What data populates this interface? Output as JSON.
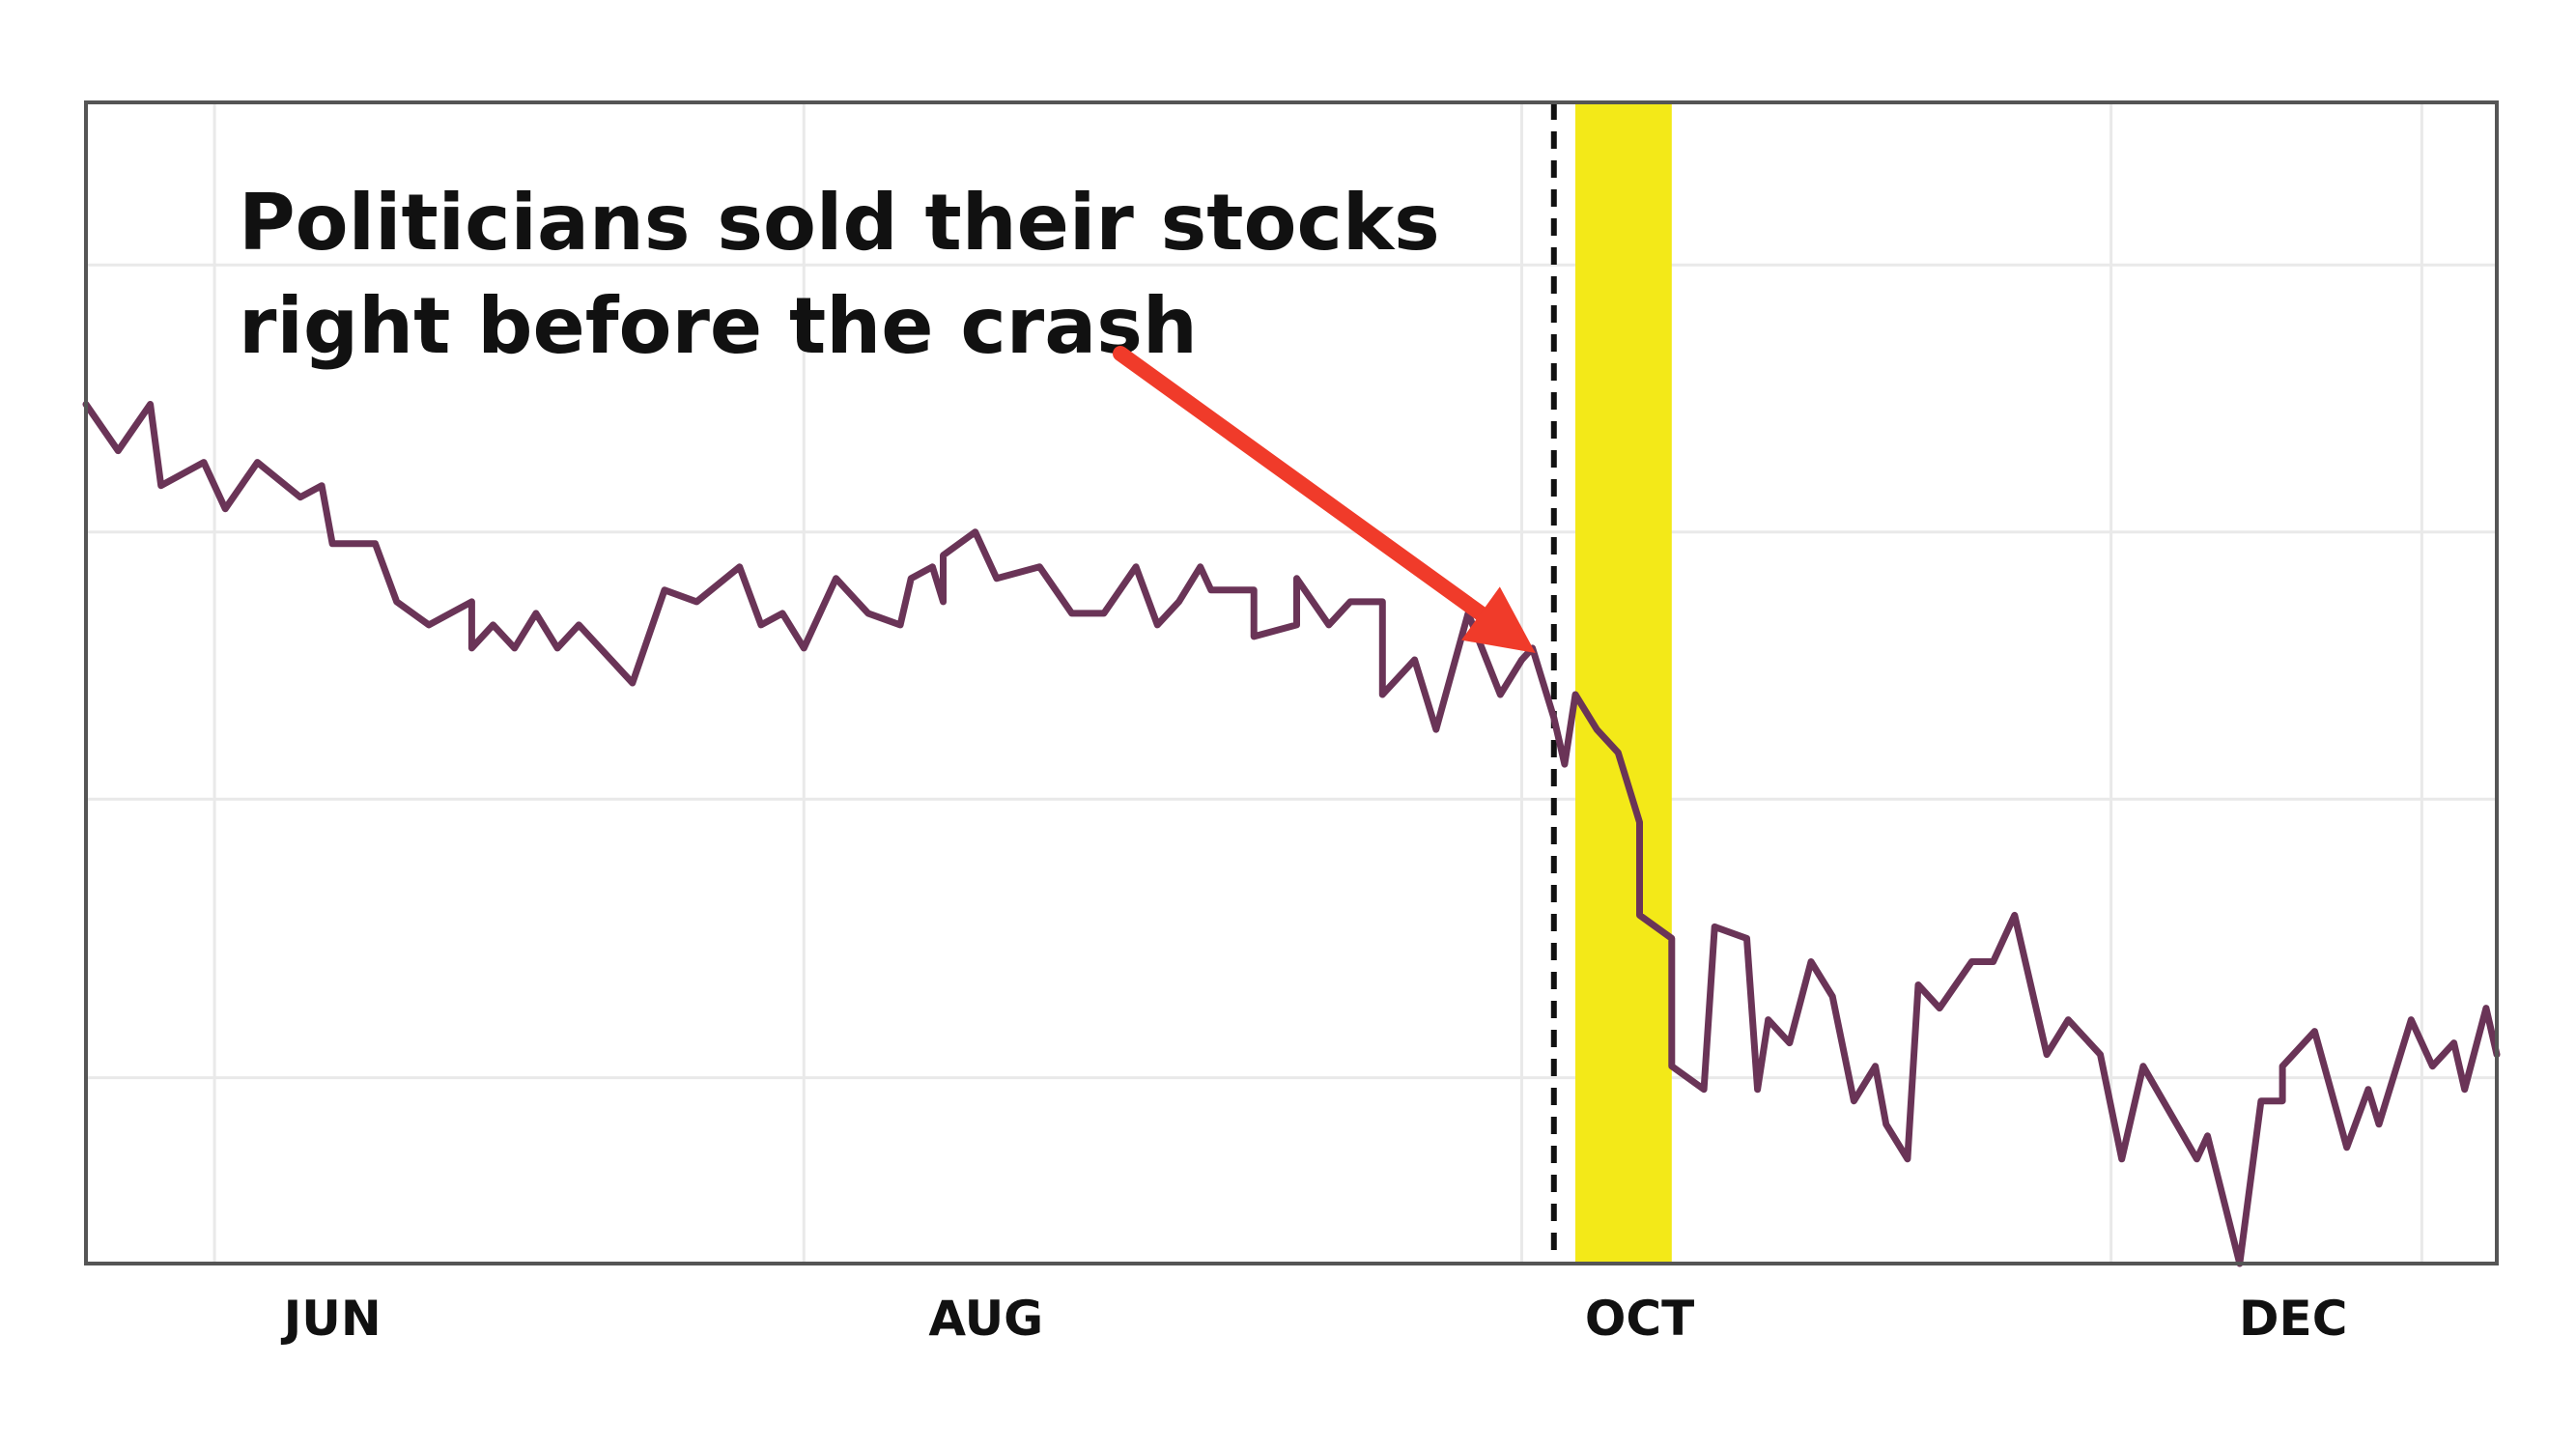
{
  "chart_data": {
    "type": "line",
    "title": "",
    "xlabel": "",
    "ylabel": "",
    "x_tick_labels": [
      "JUN",
      "AUG",
      "OCT",
      "DEC"
    ],
    "x_tick_positions": [
      "2020-06-12",
      "2020-08-12",
      "2020-10-12",
      "2020-12-12"
    ],
    "x_range": [
      "2020-05-20",
      "2020-12-31"
    ],
    "y_range": [
      0,
      10
    ],
    "grid": true,
    "legend": "none",
    "show_y_ticks": false,
    "series": [
      {
        "color": "#6a3457",
        "points": [
          [
            "2020-05-20",
            7.4
          ],
          [
            "2020-05-23",
            7.0
          ],
          [
            "2020-05-26",
            7.4
          ],
          [
            "2020-05-27",
            6.7
          ],
          [
            "2020-05-31",
            6.9
          ],
          [
            "2020-06-02",
            6.5
          ],
          [
            "2020-06-05",
            6.9
          ],
          [
            "2020-06-09",
            6.6
          ],
          [
            "2020-06-11",
            6.7
          ],
          [
            "2020-06-12",
            6.2
          ],
          [
            "2020-06-16",
            6.2
          ],
          [
            "2020-06-18",
            5.7
          ],
          [
            "2020-06-21",
            5.5
          ],
          [
            "2020-06-25",
            5.7
          ],
          [
            "2020-06-25",
            5.3
          ],
          [
            "2020-06-27",
            5.5
          ],
          [
            "2020-06-29",
            5.3
          ],
          [
            "2020-07-01",
            5.6
          ],
          [
            "2020-07-03",
            5.3
          ],
          [
            "2020-07-05",
            5.5
          ],
          [
            "2020-07-10",
            5.0
          ],
          [
            "2020-07-13",
            5.8
          ],
          [
            "2020-07-16",
            5.7
          ],
          [
            "2020-07-20",
            6.0
          ],
          [
            "2020-07-22",
            5.5
          ],
          [
            "2020-07-24",
            5.6
          ],
          [
            "2020-07-26",
            5.3
          ],
          [
            "2020-07-29",
            5.9
          ],
          [
            "2020-08-01",
            5.6
          ],
          [
            "2020-08-04",
            5.5
          ],
          [
            "2020-08-05",
            5.9
          ],
          [
            "2020-08-07",
            6.0
          ],
          [
            "2020-08-08",
            5.7
          ],
          [
            "2020-08-08",
            6.1
          ],
          [
            "2020-08-11",
            6.3
          ],
          [
            "2020-08-13",
            5.9
          ],
          [
            "2020-08-17",
            6.0
          ],
          [
            "2020-08-20",
            5.6
          ],
          [
            "2020-08-23",
            5.6
          ],
          [
            "2020-08-26",
            6.0
          ],
          [
            "2020-08-28",
            5.5
          ],
          [
            "2020-08-30",
            5.7
          ],
          [
            "2020-09-01",
            6.0
          ],
          [
            "2020-09-02",
            5.8
          ],
          [
            "2020-09-06",
            5.8
          ],
          [
            "2020-09-06",
            5.4
          ],
          [
            "2020-09-10",
            5.5
          ],
          [
            "2020-09-10",
            5.9
          ],
          [
            "2020-09-13",
            5.5
          ],
          [
            "2020-09-15",
            5.7
          ],
          [
            "2020-09-18",
            5.7
          ],
          [
            "2020-09-18",
            4.9
          ],
          [
            "2020-09-21",
            5.2
          ],
          [
            "2020-09-23",
            4.6
          ],
          [
            "2020-09-26",
            5.6
          ],
          [
            "2020-09-29",
            4.9
          ],
          [
            "2020-10-01",
            5.2
          ],
          [
            "2020-10-02",
            5.3
          ],
          [
            "2020-10-04",
            4.7
          ],
          [
            "2020-10-05",
            4.3
          ],
          [
            "2020-10-06",
            4.9
          ],
          [
            "2020-10-08",
            4.6
          ],
          [
            "2020-10-10",
            4.4
          ],
          [
            "2020-10-12",
            3.8
          ],
          [
            "2020-10-12",
            3.0
          ],
          [
            "2020-10-15",
            2.8
          ],
          [
            "2020-10-15",
            1.7
          ],
          [
            "2020-10-18",
            1.5
          ],
          [
            "2020-10-19",
            2.9
          ],
          [
            "2020-10-22",
            2.8
          ],
          [
            "2020-10-23",
            1.5
          ],
          [
            "2020-10-24",
            2.1
          ],
          [
            "2020-10-26",
            1.9
          ],
          [
            "2020-10-28",
            2.6
          ],
          [
            "2020-10-30",
            2.3
          ],
          [
            "2020-11-01",
            1.4
          ],
          [
            "2020-11-03",
            1.7
          ],
          [
            "2020-11-04",
            1.2
          ],
          [
            "2020-11-06",
            0.9
          ],
          [
            "2020-11-07",
            2.4
          ],
          [
            "2020-11-09",
            2.2
          ],
          [
            "2020-11-12",
            2.6
          ],
          [
            "2020-11-14",
            2.6
          ],
          [
            "2020-11-16",
            3.0
          ],
          [
            "2020-11-19",
            1.8
          ],
          [
            "2020-11-21",
            2.1
          ],
          [
            "2020-11-24",
            1.8
          ],
          [
            "2020-11-26",
            0.9
          ],
          [
            "2020-11-28",
            1.7
          ],
          [
            "2020-12-03",
            0.9
          ],
          [
            "2020-12-04",
            1.1
          ],
          [
            "2020-12-07",
            0.0
          ],
          [
            "2020-12-09",
            1.4
          ],
          [
            "2020-12-11",
            1.4
          ],
          [
            "2020-12-11",
            1.7
          ],
          [
            "2020-12-14",
            2.0
          ],
          [
            "2020-12-17",
            1.0
          ],
          [
            "2020-12-19",
            1.5
          ],
          [
            "2020-12-20",
            1.2
          ],
          [
            "2020-12-23",
            2.1
          ],
          [
            "2020-12-25",
            1.7
          ],
          [
            "2020-12-27",
            1.9
          ],
          [
            "2020-12-28",
            1.5
          ],
          [
            "2020-12-30",
            2.2
          ],
          [
            "2020-12-31",
            1.8
          ]
        ]
      }
    ],
    "highlight_band": {
      "start": "2020-10-06",
      "end": "2020-10-15",
      "color": "#f3e918"
    },
    "reference_line": {
      "date": "2020-10-04",
      "style": "dashed",
      "color": "#111111"
    },
    "annotation": {
      "lines": [
        "Politicians sold their stocks",
        "right before the crash"
      ],
      "arrow_color": "#f03b2a"
    }
  }
}
